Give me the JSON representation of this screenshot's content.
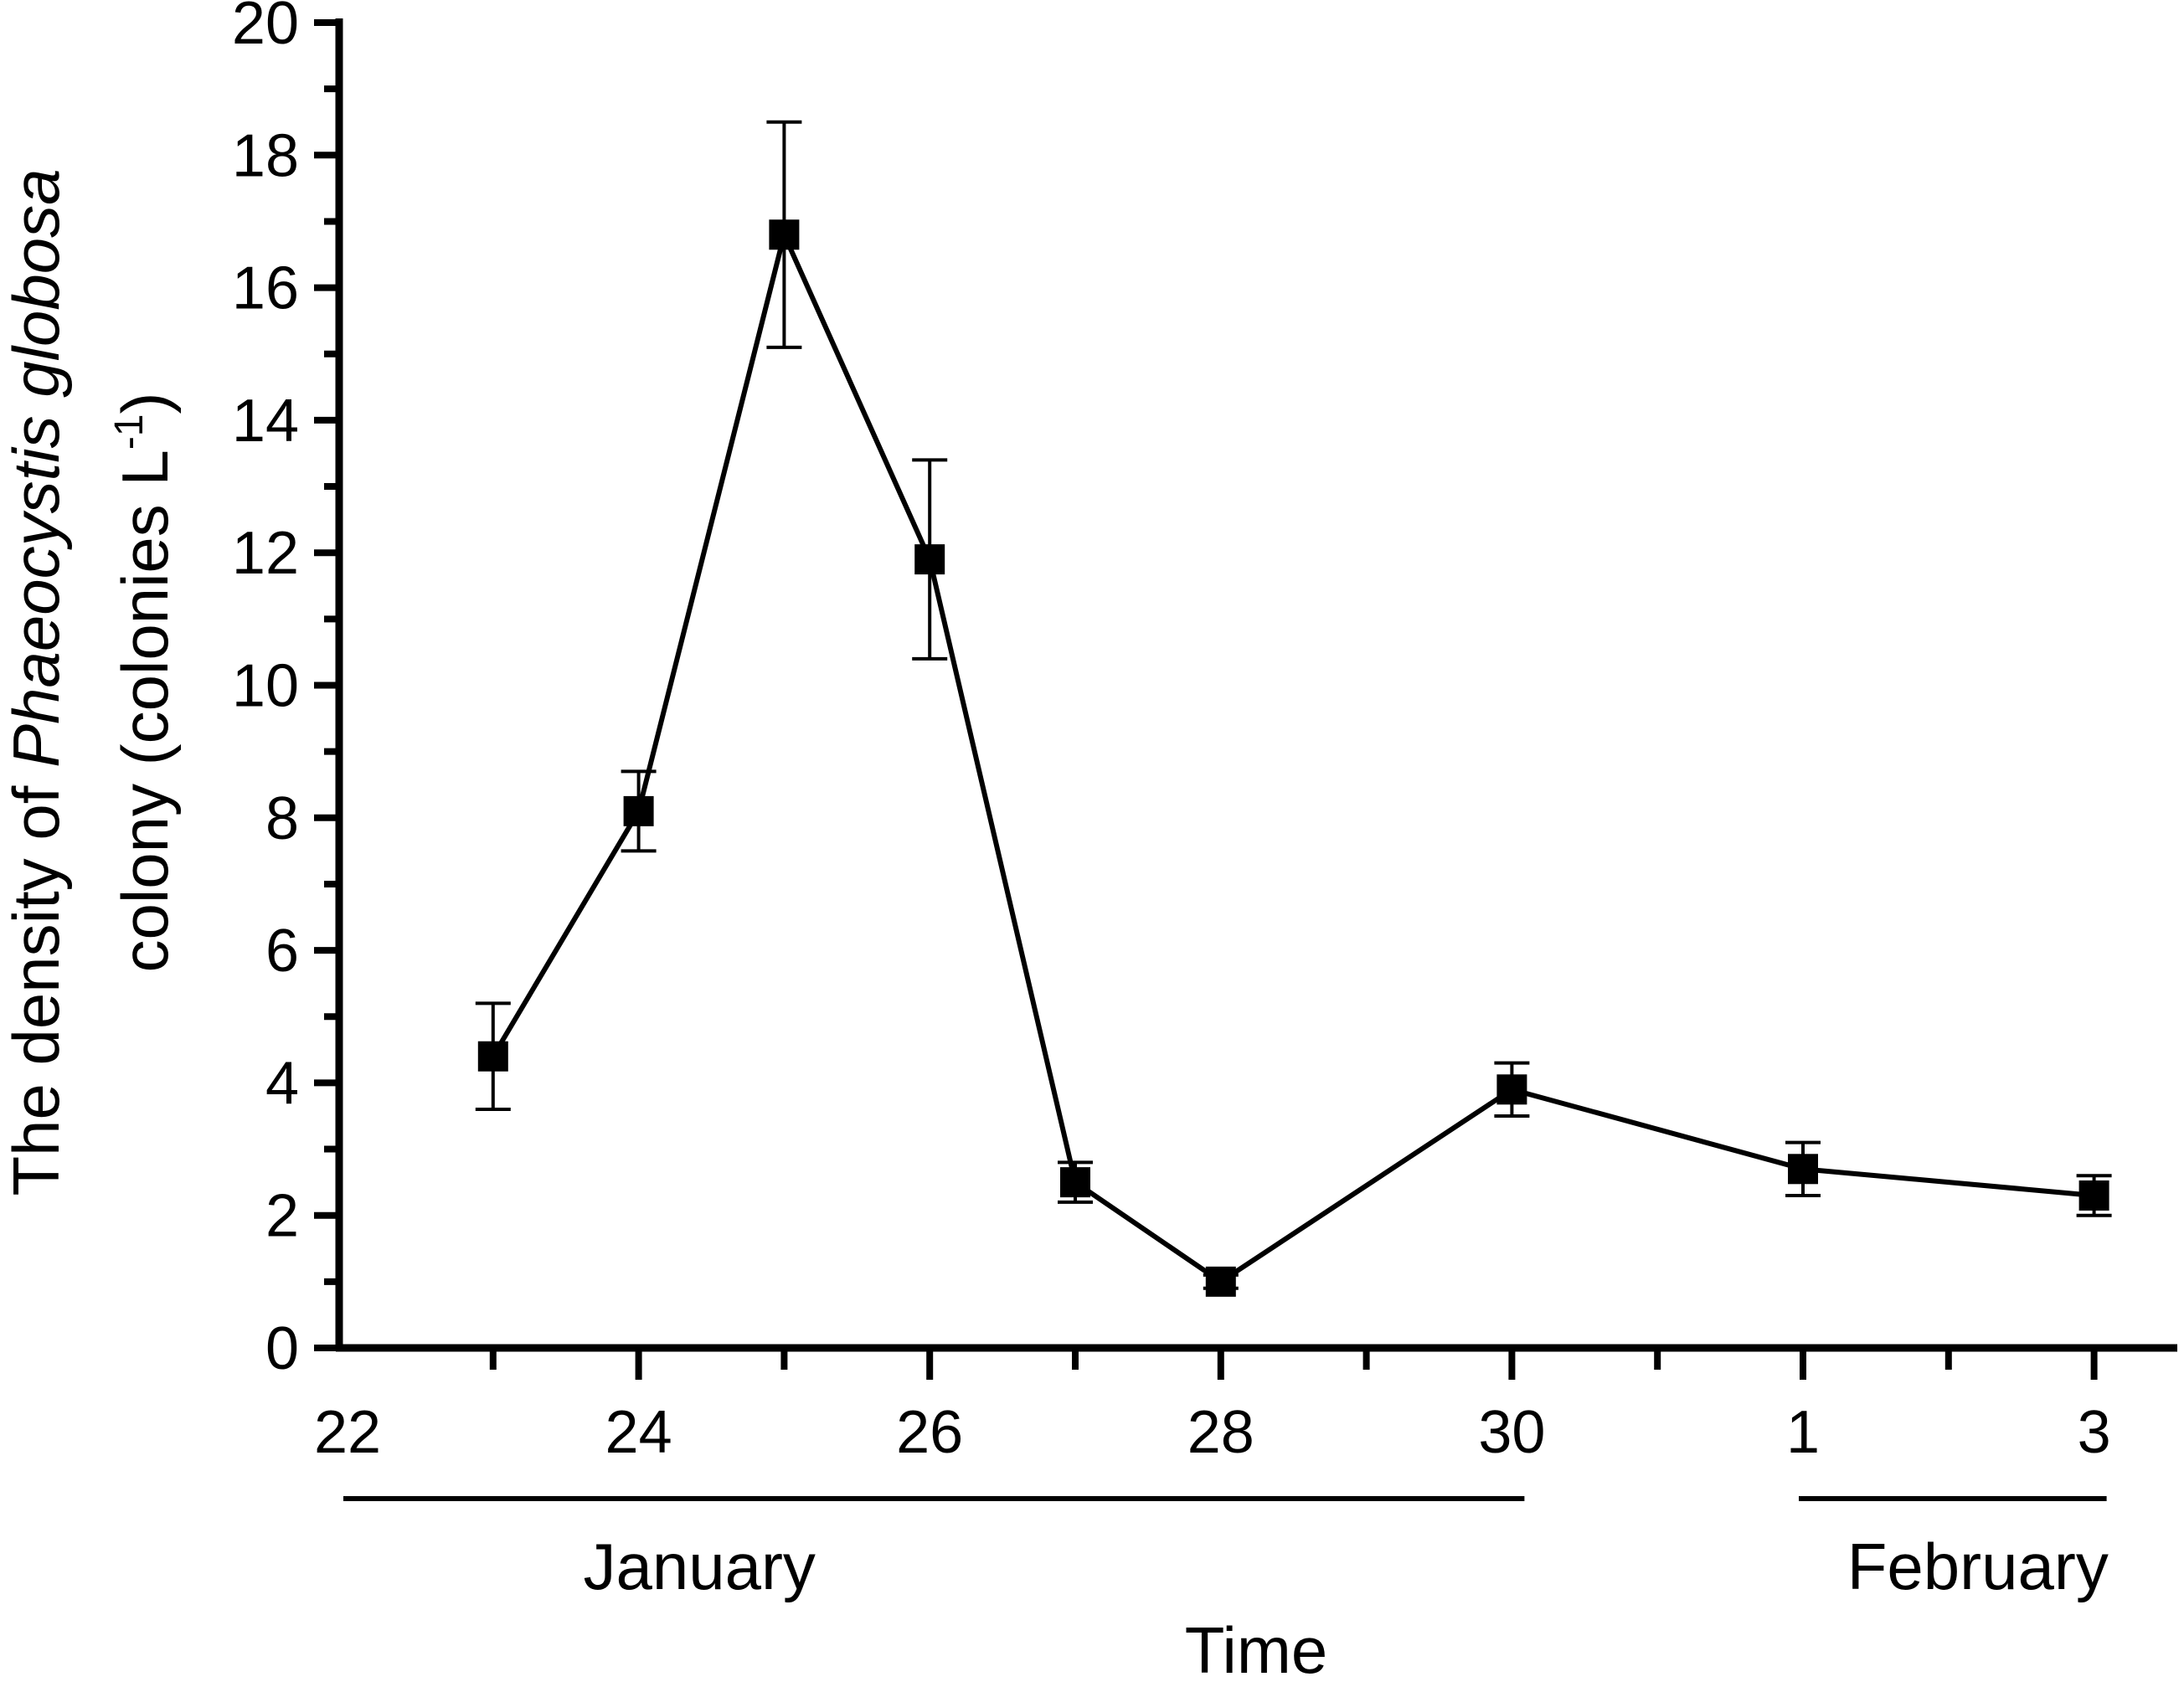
{
  "chart_data": {
    "type": "line",
    "xlabel": "Time",
    "ylabel": {
      "prefix": "The density of ",
      "species": "Phaeocystis globosa",
      "line2": "colony (colonies L",
      "superscript": "-1",
      "suffix": ")"
    },
    "ylim": [
      0,
      20
    ],
    "y_ticks": [
      "0",
      "2",
      "4",
      "6",
      "8",
      "10",
      "12",
      "14",
      "16",
      "18",
      "20"
    ],
    "xlim": [
      "22 January",
      "3 February"
    ],
    "x_ticks": [
      "22",
      "24",
      "26",
      "28",
      "30",
      "1",
      "3"
    ],
    "month_groups": [
      {
        "label": "January",
        "from": "22",
        "to": "30"
      },
      {
        "label": "February",
        "from": "1",
        "to": "3"
      }
    ],
    "series": [
      {
        "marker": "square",
        "color": "#000000",
        "x": [
          "23 January",
          "24 January",
          "25 January",
          "26 January",
          "27 January",
          "28 January",
          "30 January",
          "1 February",
          "3 February"
        ],
        "values": [
          4.4,
          8.1,
          16.8,
          11.9,
          2.5,
          1.0,
          3.9,
          2.7,
          2.3
        ],
        "error": [
          0.8,
          0.6,
          1.7,
          1.5,
          0.3,
          0.1,
          0.4,
          0.4,
          0.3
        ]
      }
    ],
    "grid": false,
    "legend": "none"
  }
}
